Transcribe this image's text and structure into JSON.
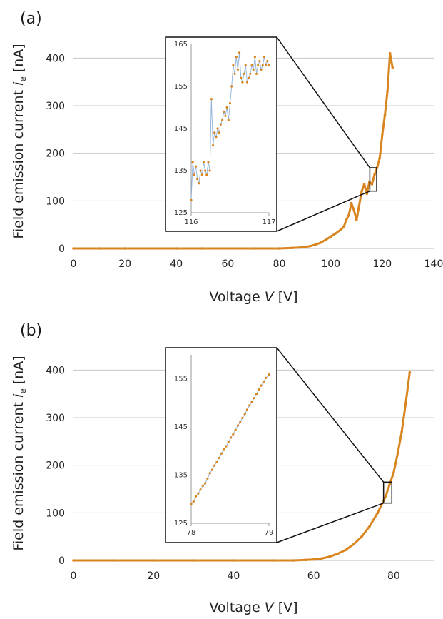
{
  "chart_data": [
    {
      "panel_label": "(a)",
      "type": "scatter",
      "xlabel": {
        "prefix": "Voltage ",
        "var": "V",
        "unit": " [V]"
      },
      "ylabel": {
        "prefix": "Field emission current ",
        "var": "i",
        "sub": "e",
        "unit": " [nA]"
      },
      "xlim": [
        0,
        140
      ],
      "ylim": [
        0,
        450
      ],
      "xticks": [
        0,
        20,
        40,
        60,
        80,
        100,
        120,
        140
      ],
      "yticks": [
        0,
        100,
        200,
        300,
        400
      ],
      "grid": true,
      "color": "#d9851f",
      "line_color": "#8fb1d9",
      "series": [
        {
          "x": [
            0,
            10,
            20,
            30,
            40,
            50,
            60,
            70,
            80,
            85,
            88,
            90,
            92,
            94,
            96,
            98,
            100,
            102,
            104,
            105,
            106,
            107,
            108,
            109,
            110,
            111,
            112,
            113,
            114,
            115,
            116,
            117,
            118,
            119,
            120,
            121,
            122,
            123,
            124
          ],
          "y": [
            0,
            0,
            0,
            0,
            0,
            0,
            0,
            0,
            0,
            1,
            2,
            3,
            5,
            8,
            12,
            18,
            25,
            32,
            40,
            45,
            60,
            70,
            95,
            80,
            60,
            90,
            120,
            135,
            115,
            140,
            135,
            155,
            170,
            190,
            240,
            280,
            330,
            410,
            380
          ]
        }
      ],
      "inset": {
        "xlim": [
          116,
          117
        ],
        "ylim": [
          125,
          165
        ],
        "xticks": [
          116,
          117
        ],
        "yticks": [
          125,
          135,
          145,
          155,
          165
        ],
        "zoom_box": {
          "x": [
            116,
            117
          ],
          "y": [
            125,
            165
          ]
        },
        "series": [
          {
            "x": [
              116.0,
              116.02,
              116.04,
              116.06,
              116.08,
              116.1,
              116.12,
              116.14,
              116.16,
              116.18,
              116.2,
              116.22,
              116.24,
              116.26,
              116.28,
              116.3,
              116.32,
              116.34,
              116.36,
              116.38,
              116.4,
              116.42,
              116.44,
              116.46,
              116.48,
              116.5,
              116.52,
              116.54,
              116.56,
              116.58,
              116.6,
              116.62,
              116.64,
              116.66,
              116.68,
              116.7,
              116.72,
              116.74,
              116.76,
              116.78,
              116.8,
              116.82,
              116.84,
              116.86,
              116.88,
              116.9,
              116.92,
              116.94,
              116.96,
              116.98,
              117.0
            ],
            "y": [
              128,
              137,
              134,
              136,
              133,
              132,
              135,
              134,
              137,
              135,
              134,
              137,
              135,
              152,
              141,
              144,
              143,
              145,
              144,
              146,
              147,
              149,
              148,
              150,
              147,
              151,
              155,
              160,
              158,
              162,
              159,
              163,
              157,
              156,
              158,
              160,
              156,
              157,
              158,
              160,
              159,
              162,
              158,
              160,
              161,
              159,
              160,
              162,
              160,
              161,
              160
            ]
          }
        ]
      }
    },
    {
      "panel_label": "(b)",
      "type": "scatter",
      "xlabel": {
        "prefix": "Voltage ",
        "var": "V",
        "unit": " [V]"
      },
      "ylabel": {
        "prefix": "Field emission current ",
        "var": "i",
        "sub": "e",
        "unit": " [nA]"
      },
      "xlim": [
        0,
        90
      ],
      "ylim": [
        0,
        450
      ],
      "xticks": [
        0,
        20,
        40,
        60,
        80
      ],
      "yticks": [
        0,
        100,
        200,
        300,
        400
      ],
      "grid": true,
      "color": "#d9851f",
      "line_color": "#8fb1d9",
      "series": [
        {
          "x": [
            0,
            10,
            20,
            30,
            40,
            50,
            55,
            58,
            60,
            62,
            64,
            66,
            68,
            70,
            72,
            74,
            76,
            78,
            79,
            80,
            81,
            82,
            83,
            84
          ],
          "y": [
            0,
            0,
            0,
            0,
            0,
            0,
            0,
            1,
            2,
            4,
            8,
            14,
            22,
            34,
            50,
            72,
            100,
            135,
            160,
            185,
            225,
            270,
            330,
            395
          ]
        }
      ],
      "inset": {
        "xlim": [
          78,
          79
        ],
        "ylim": [
          125,
          160
        ],
        "xticks": [
          78,
          79
        ],
        "yticks": [
          125,
          135,
          145,
          155
        ],
        "zoom_box": {
          "x": [
            78,
            79
          ],
          "y": [
            125,
            160
          ]
        },
        "series": [
          {
            "x": [
              78.0,
              78.03,
              78.06,
              78.09,
              78.12,
              78.15,
              78.18,
              78.21,
              78.24,
              78.27,
              78.3,
              78.33,
              78.36,
              78.39,
              78.42,
              78.45,
              78.48,
              78.51,
              78.54,
              78.57,
              78.6,
              78.63,
              78.66,
              78.69,
              78.72,
              78.75,
              78.78,
              78.81,
              78.84,
              78.87,
              78.9,
              78.93,
              78.96,
              79.0
            ],
            "y": [
              129,
              129.5,
              130.6,
              131.2,
              132.0,
              132.8,
              133.3,
              134.3,
              135.4,
              136.1,
              137.0,
              137.8,
              138.6,
              139.5,
              140.4,
              141.0,
              141.9,
              142.8,
              143.5,
              144.4,
              145.3,
              146.0,
              146.9,
              147.7,
              148.6,
              149.5,
              150.2,
              151.0,
              151.9,
              152.8,
              153.6,
              154.4,
              155.2,
              155.9
            ]
          }
        ]
      }
    }
  ]
}
